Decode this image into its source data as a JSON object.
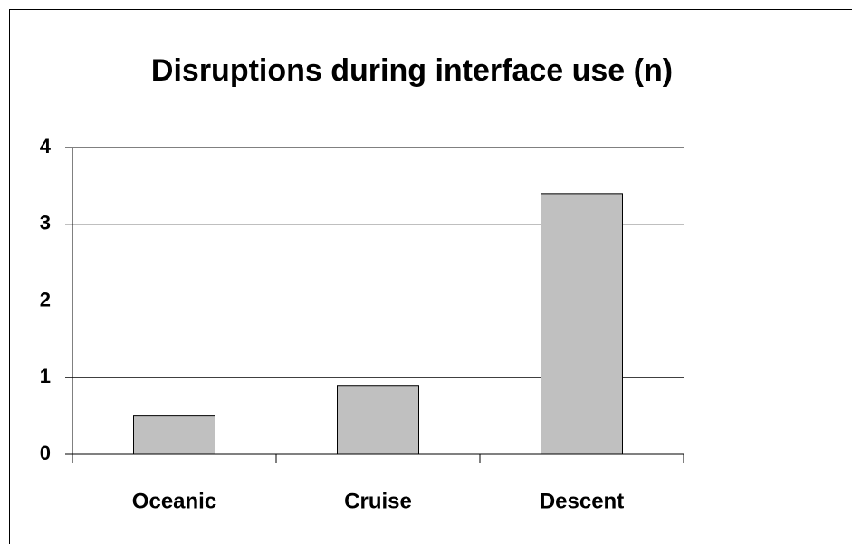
{
  "chart_data": {
    "type": "bar",
    "title": "Disruptions during interface use (n)",
    "categories": [
      "Oceanic",
      "Cruise",
      "Descent"
    ],
    "values": [
      0.5,
      0.9,
      3.4
    ],
    "color": "#c0c0c0",
    "ylim": [
      0,
      4
    ],
    "yticks": [
      0,
      1,
      2,
      3,
      4
    ],
    "grid": true
  }
}
